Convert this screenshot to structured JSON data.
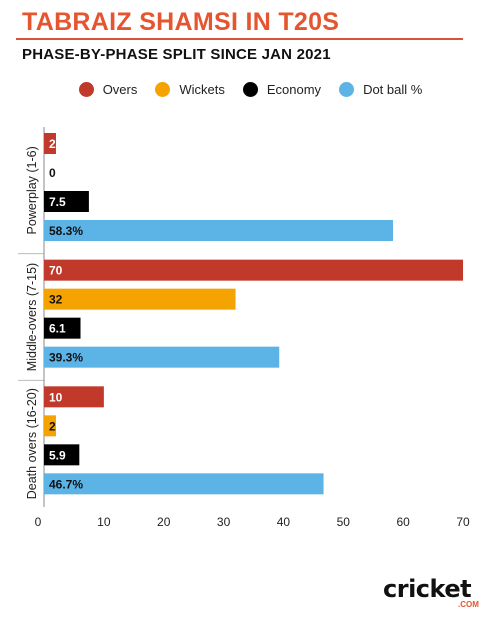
{
  "title": "TABRAIZ SHAMSI IN T20S",
  "subtitle": "PHASE-BY-PHASE SPLIT SINCE JAN 2021",
  "brand": {
    "word": "cricket",
    "suffix": ".COM"
  },
  "colors": {
    "Overs": "#c0392b",
    "Wickets": "#f5a300",
    "Economy": "#000000",
    "Dot ball %": "#5cb3e6",
    "title": "#e5552f"
  },
  "chart_data": {
    "type": "bar",
    "orientation": "horizontal",
    "categories": [
      "Powerplay (1-6)",
      "Middle-overs (7-15)",
      "Death overs (16-20)"
    ],
    "series": [
      {
        "name": "Overs",
        "values": [
          2,
          70,
          10
        ],
        "labels": [
          "2",
          "70",
          "10"
        ]
      },
      {
        "name": "Wickets",
        "values": [
          0,
          32,
          2
        ],
        "labels": [
          "0",
          "32",
          "2"
        ]
      },
      {
        "name": "Economy",
        "values": [
          7.5,
          6.1,
          5.9
        ],
        "labels": [
          "7.5",
          "6.1",
          "5.9"
        ]
      },
      {
        "name": "Dot ball %",
        "values": [
          58.3,
          39.3,
          46.7
        ],
        "labels": [
          "58.3%",
          "39.3%",
          "46.7%"
        ]
      }
    ],
    "xlim": [
      0,
      72
    ],
    "xticks": [
      0,
      10,
      20,
      30,
      40,
      50,
      60,
      70
    ],
    "grid": false,
    "legend": "top"
  }
}
